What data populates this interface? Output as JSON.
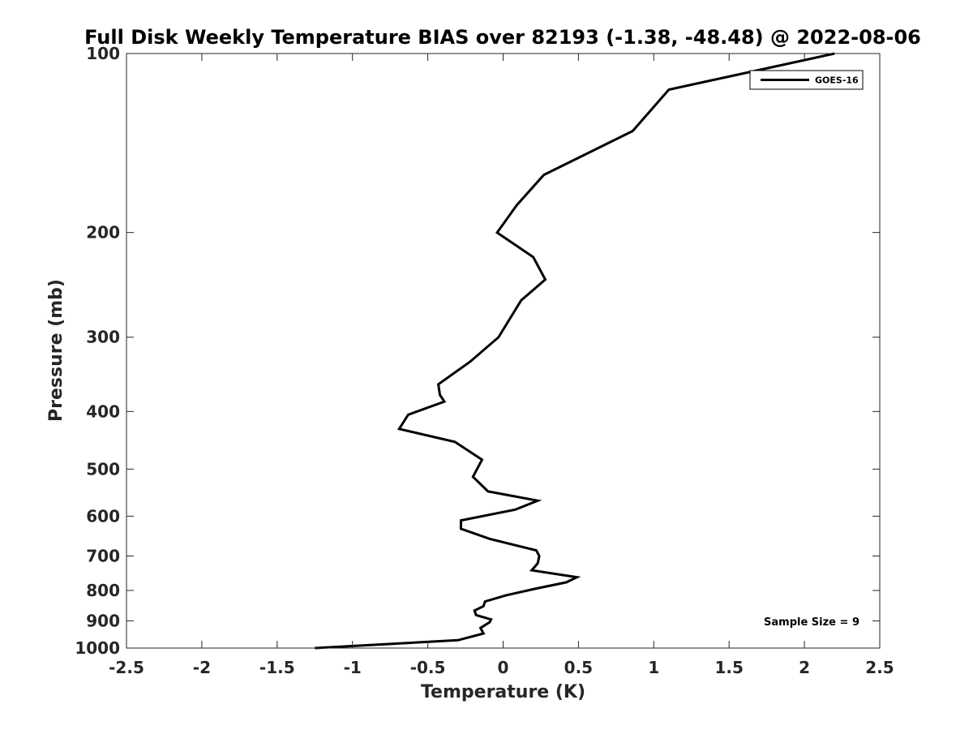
{
  "chart_data": {
    "type": "line",
    "title": "Full Disk Weekly Temperature BIAS over 82193 (-1.38, -48.48) @ 2022-08-06",
    "xlabel": "Temperature (K)",
    "ylabel": "Pressure (mb)",
    "xlim": [
      -2.5,
      2.5
    ],
    "ylim": [
      100,
      1000
    ],
    "yscale": "log",
    "y_reversed": true,
    "grid": false,
    "legend_position": "top-right",
    "x_ticks": [
      -2.5,
      -2,
      -1.5,
      -1,
      -0.5,
      0,
      0.5,
      1,
      1.5,
      2,
      2.5
    ],
    "x_tick_labels": [
      "-2.5",
      "-2",
      "-1.5",
      "-1",
      "-0.5",
      "0",
      "0.5",
      "1",
      "1.5",
      "2",
      "2.5"
    ],
    "y_ticks": [
      100,
      200,
      300,
      400,
      500,
      600,
      700,
      800,
      900,
      1000
    ],
    "y_tick_labels": [
      "100",
      "200",
      "300",
      "400",
      "500",
      "600",
      "700",
      "800",
      "900",
      "1000"
    ],
    "series": [
      {
        "name": "GOES-16",
        "color": "#000000",
        "x": [
          2.2,
          1.1,
          0.86,
          0.27,
          0.09,
          -0.04,
          0.2,
          0.28,
          0.12,
          -0.03,
          -0.22,
          -0.43,
          -0.42,
          -0.39,
          -0.63,
          -0.69,
          -0.32,
          -0.14,
          -0.2,
          -0.1,
          0.23,
          0.08,
          -0.28,
          -0.28,
          -0.09,
          0.22,
          0.24,
          0.23,
          0.19,
          0.49,
          0.42,
          0.21,
          0.02,
          -0.12,
          -0.13,
          -0.19,
          -0.18,
          -0.08,
          -0.09,
          -0.15,
          -0.13,
          -0.3,
          -1.25
        ],
        "y": [
          100,
          115,
          135,
          160,
          180,
          200,
          220,
          240,
          260,
          300,
          330,
          360,
          375,
          385,
          405,
          428,
          450,
          482,
          515,
          545,
          565,
          585,
          610,
          630,
          655,
          685,
          700,
          720,
          740,
          760,
          775,
          795,
          815,
          835,
          850,
          865,
          880,
          895,
          905,
          925,
          945,
          970,
          1000
        ]
      }
    ],
    "annotations": [
      "Sample Size = 9"
    ]
  }
}
